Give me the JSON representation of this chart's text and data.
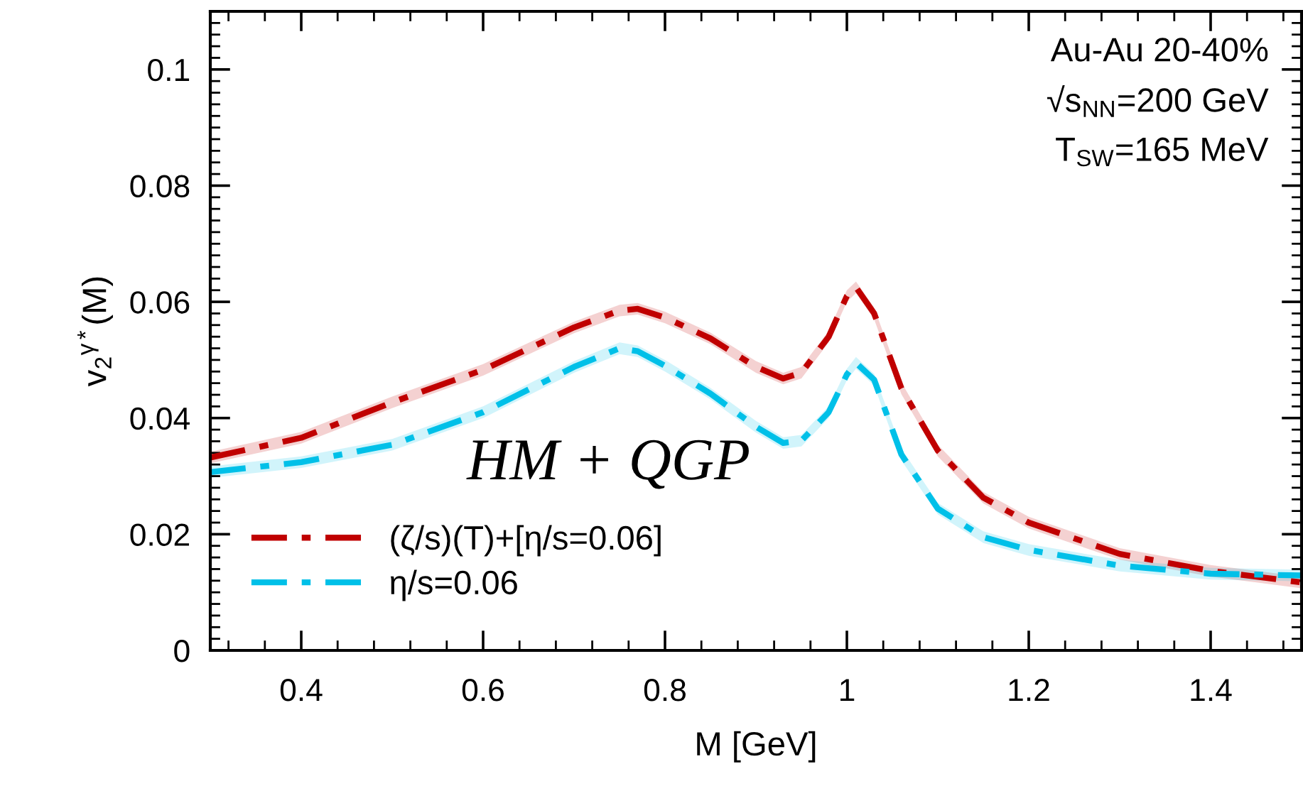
{
  "chart_data": {
    "type": "line",
    "xlabel": "M [GeV]",
    "ylabel": "v$_{2}$$^{γ*}$(M)",
    "x": [
      0.3,
      0.4,
      0.5,
      0.6,
      0.7,
      0.75,
      0.77,
      0.8,
      0.85,
      0.9,
      0.93,
      0.95,
      0.98,
      1.0,
      1.01,
      1.03,
      1.06,
      1.1,
      1.15,
      1.2,
      1.3,
      1.4,
      1.5
    ],
    "series": [
      {
        "name": "(ζ/s)(T)+[η/s=0.06]",
        "color": "#c00000",
        "values": [
          0.0332,
          0.0366,
          0.0427,
          0.0483,
          0.0556,
          0.0585,
          0.0588,
          0.0573,
          0.0537,
          0.0488,
          0.0468,
          0.0478,
          0.054,
          0.061,
          0.0625,
          0.058,
          0.0451,
          0.0344,
          0.0263,
          0.022,
          0.0166,
          0.0137,
          0.0117
        ],
        "lower": [
          0.0322,
          0.0356,
          0.0417,
          0.0473,
          0.0546,
          0.0575,
          0.0578,
          0.0563,
          0.0527,
          0.0478,
          0.0458,
          0.0468,
          0.053,
          0.06,
          0.0615,
          0.057,
          0.0441,
          0.0334,
          0.0253,
          0.021,
          0.0156,
          0.0127,
          0.0107
        ],
        "upper": [
          0.0342,
          0.0376,
          0.0437,
          0.0493,
          0.0566,
          0.0595,
          0.0598,
          0.0583,
          0.0547,
          0.0498,
          0.0478,
          0.0488,
          0.055,
          0.062,
          0.0635,
          0.059,
          0.0461,
          0.0354,
          0.0273,
          0.023,
          0.0176,
          0.0147,
          0.0127
        ]
      },
      {
        "name": "η/s=0.06",
        "color": "#00c0e8",
        "values": [
          0.0307,
          0.0324,
          0.0354,
          0.041,
          0.0488,
          0.052,
          0.0515,
          0.049,
          0.0442,
          0.0385,
          0.0357,
          0.0361,
          0.041,
          0.0475,
          0.0495,
          0.0466,
          0.0337,
          0.0244,
          0.0195,
          0.0173,
          0.0146,
          0.0132,
          0.0129
        ],
        "lower": [
          0.0297,
          0.0314,
          0.0344,
          0.04,
          0.0478,
          0.051,
          0.0505,
          0.048,
          0.0432,
          0.0375,
          0.0347,
          0.0351,
          0.04,
          0.0465,
          0.0485,
          0.0456,
          0.0327,
          0.0234,
          0.0185,
          0.0163,
          0.0136,
          0.0122,
          0.0119
        ],
        "upper": [
          0.0317,
          0.0334,
          0.0364,
          0.042,
          0.0498,
          0.053,
          0.0525,
          0.05,
          0.0452,
          0.0395,
          0.0367,
          0.0371,
          0.042,
          0.0485,
          0.0505,
          0.0476,
          0.0347,
          0.0254,
          0.0205,
          0.0183,
          0.0156,
          0.0142,
          0.0139
        ]
      }
    ],
    "xlim": [
      0.3,
      1.5
    ],
    "xticks": [
      0.4,
      0.6,
      0.8,
      1,
      1.2,
      1.4
    ],
    "ylim": [
      0,
      0.11
    ],
    "yticks": [
      0,
      0.02,
      0.04,
      0.06,
      0.08,
      0.1
    ],
    "annotations": [
      "Au-Au 20-40%",
      "√s$_{NN}$=200 GeV",
      "T$_{SW}$=165 MeV",
      "HM + QGP"
    ],
    "legend": "bottom left",
    "grid": false,
    "marker": "none",
    "line_style": "dashdot"
  }
}
